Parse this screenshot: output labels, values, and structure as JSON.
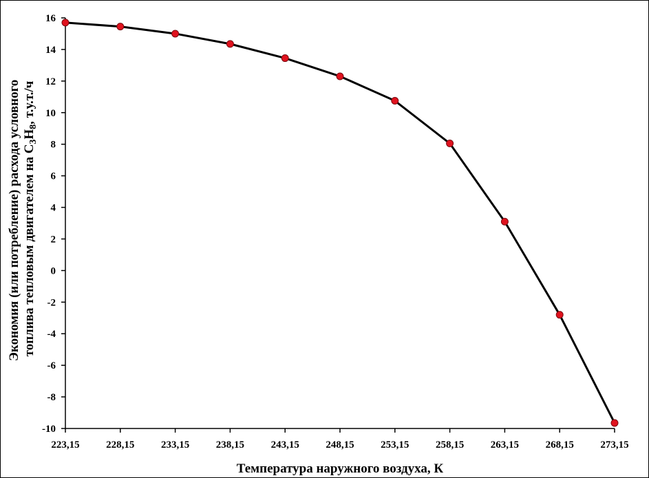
{
  "chart_data": {
    "type": "line",
    "title": "",
    "xlabel": "Температура наружного воздуха, К",
    "ylabel": {
      "line1": "Экономия (или потребление) расхода условного",
      "line2_prefix": "топлива тепловым двигателем на C",
      "sub1": "3",
      "mid": "H",
      "sub2": "8",
      "suffix": ", т.у.т./ч"
    },
    "x": [
      "223,15",
      "228,15",
      "233,15",
      "238,15",
      "243,15",
      "248,15",
      "253,15",
      "258,15",
      "263,15",
      "268,15",
      "273,15"
    ],
    "values": [
      15.7,
      15.45,
      15.0,
      14.35,
      13.45,
      12.3,
      10.75,
      8.05,
      3.1,
      -2.8,
      -9.65
    ],
    "ylim": [
      -10,
      16
    ],
    "yticks": [
      16,
      14,
      12,
      10,
      8,
      6,
      4,
      2,
      0,
      -2,
      -4,
      -6,
      -8,
      -10
    ],
    "grid": false,
    "line_color": "#000000",
    "marker_color": "#e0121e"
  }
}
